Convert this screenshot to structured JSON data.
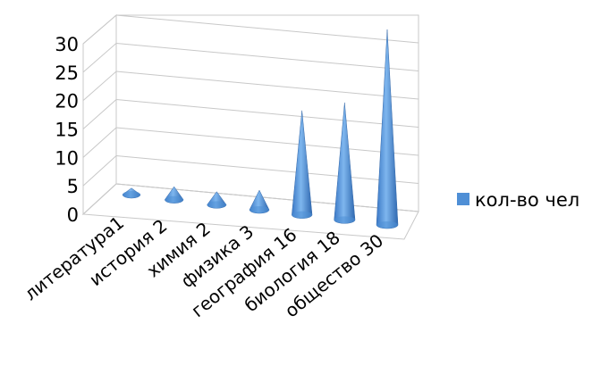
{
  "chart_data": {
    "type": "bar",
    "shape": "cone",
    "view": "3d",
    "categories": [
      "литература1",
      "история 2",
      "химия 2",
      "физика 3",
      "география 16",
      "биология 18",
      "общество 30"
    ],
    "series": [
      {
        "name": "кол-во чел",
        "values": [
          1,
          2,
          2,
          3,
          16,
          18,
          30
        ]
      }
    ],
    "ylim": [
      0,
      30
    ],
    "yticks": [
      "0",
      "5",
      "10",
      "15",
      "20",
      "25",
      "30"
    ],
    "grid": true,
    "legend": "right",
    "colors": {
      "series": "#4f8fd6",
      "grid": "#c8c8c8"
    }
  }
}
